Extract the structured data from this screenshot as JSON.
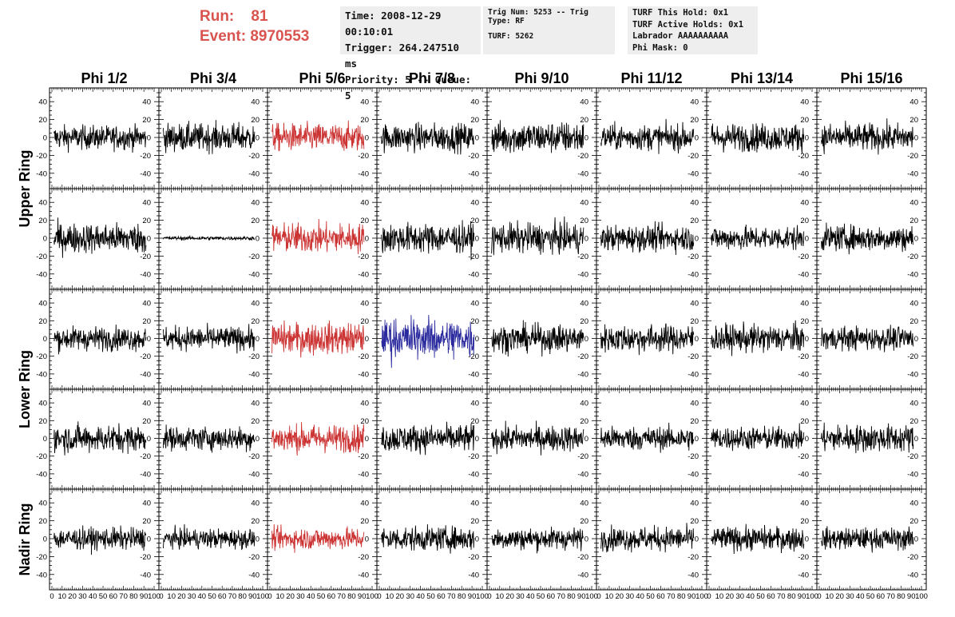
{
  "header": {
    "run_label": "Run:",
    "run_value": "81",
    "event_label": "Event:",
    "event_value": "8970553",
    "color": "#d9534f"
  },
  "info_time": {
    "time": "Time: 2008-12-29 00:10:01",
    "trigger": "Trigger: 264.247510 ms",
    "priority": "Priority: 5 -- Queue: 5"
  },
  "info_trig": {
    "trig": "Trig Num: 5253 -- Trig Type: RF",
    "turf": "TURF: 5262"
  },
  "info_turf": {
    "this_hold": "TURF This Hold: 0x1",
    "active_holds": "TURF Active Holds: 0x1",
    "labrador": "Labrador AAAAAAAAAA",
    "phi_mask": "Phi Mask: 0"
  },
  "chart_data": {
    "type": "line",
    "columns": [
      "Phi 1/2",
      "Phi 3/4",
      "Phi 5/6",
      "Phi 7/8",
      "Phi 9/10",
      "Phi 11/12",
      "Phi 13/14",
      "Phi 15/16"
    ],
    "row_labels": [
      "Upper Ring",
      "Lower Ring",
      "Nadir Ring"
    ],
    "rows": 5,
    "xlim": [
      0,
      100
    ],
    "ylim": [
      -50,
      50
    ],
    "x_ticks": [
      "0",
      "10",
      "20",
      "30",
      "40",
      "50",
      "60",
      "70",
      "80",
      "90",
      "100"
    ],
    "y_ticks": [
      "-40",
      "-20",
      "0",
      "20",
      "40"
    ],
    "line_colors": {
      "default": "#000000",
      "highlight": "#cc3333",
      "trigger": "#2a2a9e"
    },
    "highlight_column": 2,
    "trigger_cell": {
      "row": 2,
      "col": 3
    },
    "amplitudes": [
      [
        12,
        14,
        14,
        14,
        16,
        13,
        14,
        14
      ],
      [
        15,
        2,
        15,
        15,
        15,
        13,
        12,
        13
      ],
      [
        12,
        12,
        16,
        18,
        14,
        14,
        14,
        12
      ],
      [
        14,
        12,
        14,
        14,
        13,
        12,
        12,
        14
      ],
      [
        11,
        10,
        11,
        12,
        11,
        12,
        12,
        11
      ]
    ]
  }
}
